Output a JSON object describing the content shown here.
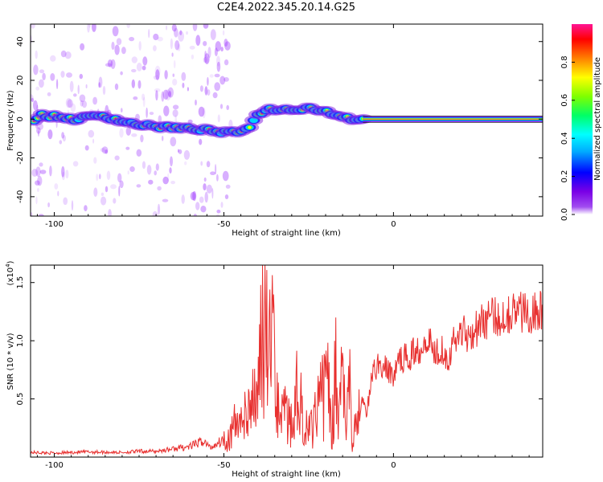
{
  "title": "C2E4.2022.345.20.14.G25",
  "colors": {
    "snr_line": "#e8302f",
    "axes": "#000000",
    "spectrogram_bg": "#ffffff",
    "trace_center": "#ff2a2a"
  },
  "chart_data": [
    {
      "type": "heatmap",
      "name": "spectrogram",
      "xlabel": "Height of straight line (km)",
      "ylabel": "Frequency (Hz)",
      "xlim": [
        -107,
        44
      ],
      "ylim": [
        -50,
        49
      ],
      "xticks": [
        -100,
        -50,
        0
      ],
      "yticks": [
        40,
        20,
        0,
        -20,
        -40
      ],
      "colorbar": {
        "label": "Normalized spectral amplitude",
        "range": [
          0,
          1
        ],
        "ticks": [
          0.0,
          0.2,
          0.4,
          0.6,
          0.8
        ],
        "tick_labels": [
          "0.0",
          "0.2",
          "0.4",
          "0.6",
          "0.8"
        ],
        "colormap": [
          "#ffffff",
          "#8a2be2",
          "#0000ff",
          "#00ffff",
          "#00ff00",
          "#ffff00",
          "#ff8000",
          "#ff0000",
          "#ff1493"
        ]
      },
      "ridge_x": [
        -104,
        -98,
        -94,
        -90,
        -86,
        -82,
        -78,
        -74,
        -70,
        -66,
        -62,
        -58,
        -54,
        -50,
        -46,
        -42,
        -40,
        -38,
        -35,
        -30,
        -25,
        -20,
        -16,
        -12,
        -8,
        -4,
        0,
        5,
        10,
        15,
        20,
        30,
        44
      ],
      "ridge_y": [
        2,
        1,
        0,
        1,
        2,
        0,
        -2,
        -3,
        -4,
        -4,
        -5,
        -5,
        -6,
        -7,
        -7,
        -3,
        2,
        5,
        5,
        5,
        6,
        4,
        2,
        0,
        0,
        0,
        0,
        0,
        1,
        0,
        0,
        0,
        0
      ]
    },
    {
      "type": "line",
      "name": "snr",
      "xlabel": "Height of straight line (km)",
      "ylabel": "SNR (10 * v/v)",
      "scale_label": "(x10",
      "scale_exp": "4",
      "scale_close": ")",
      "xlim": [
        -107,
        44
      ],
      "ylim": [
        0,
        16500
      ],
      "xticks": [
        -100,
        -50,
        0
      ],
      "yticks": [
        5000,
        10000,
        15000
      ],
      "ytick_labels": [
        "0.5",
        "1.0",
        "1.5"
      ],
      "x": [
        -107,
        -100,
        -90,
        -80,
        -75,
        -70,
        -65,
        -60,
        -56,
        -54,
        -52,
        -50,
        -48,
        -46,
        -44,
        -42,
        -40,
        -39,
        -38,
        -37,
        -36,
        -35,
        -34,
        -32,
        -30,
        -28,
        -26,
        -24,
        -22,
        -20,
        -18,
        -17,
        -16,
        -15,
        -14,
        -13,
        -12,
        -11,
        -10,
        -9,
        -8,
        -6,
        -4,
        -2,
        0,
        2,
        4,
        6,
        8,
        10,
        12,
        14,
        16,
        18,
        20,
        22,
        24,
        26,
        28,
        30,
        32,
        34,
        36,
        38,
        40,
        42,
        44
      ],
      "y": [
        400,
        350,
        450,
        400,
        500,
        500,
        700,
        900,
        1400,
        800,
        1200,
        1500,
        2000,
        3000,
        3600,
        4500,
        5200,
        9000,
        16500,
        7000,
        12000,
        6000,
        4000,
        3500,
        3000,
        6000,
        2500,
        3000,
        4000,
        7000,
        2500,
        8000,
        3000,
        9500,
        2000,
        6500,
        1000,
        4000,
        3500,
        5000,
        3500,
        7500,
        8000,
        7500,
        7000,
        8500,
        8500,
        9000,
        9500,
        10500,
        9000,
        9500,
        8500,
        10000,
        11000,
        10500,
        11000,
        11500,
        12000,
        12000,
        12000,
        12500,
        12500,
        12500,
        12500,
        12500,
        12500
      ]
    }
  ]
}
